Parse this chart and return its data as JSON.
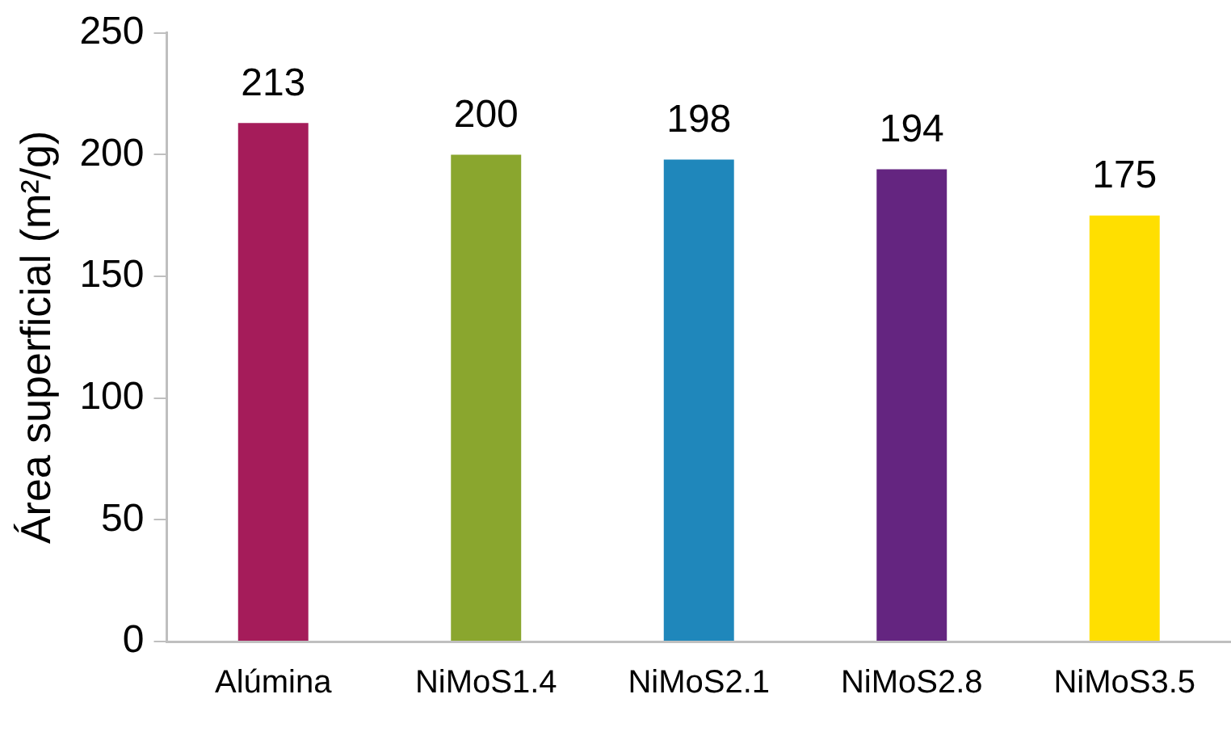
{
  "chart_data": {
    "type": "bar",
    "ylabel": "Área superficial (m²/g)",
    "categories": [
      "Alúmina",
      "NiMoS1.4",
      "NiMoS2.1",
      "NiMoS2.8",
      "NiMoS3.5"
    ],
    "values": [
      213,
      200,
      198,
      194,
      175
    ],
    "colors": [
      "#a51c5a",
      "#8aa62e",
      "#1f87bb",
      "#642580",
      "#ffdf00"
    ],
    "ylim": [
      0,
      250
    ],
    "yticks": [
      0,
      50,
      100,
      150,
      200,
      250
    ],
    "grid": false,
    "legend": false,
    "data_labels": true
  }
}
